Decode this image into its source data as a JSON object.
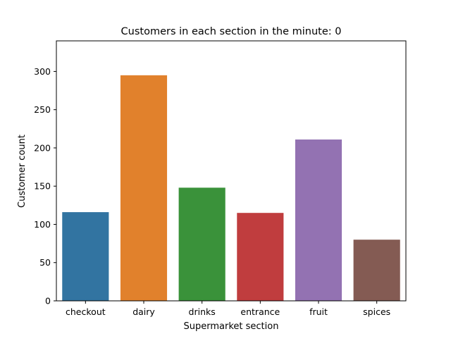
{
  "chart_data": {
    "type": "bar",
    "title": "Customers in each section in the minute: 0",
    "xlabel": "Supermarket section",
    "ylabel": "Customer count",
    "categories": [
      "checkout",
      "dairy",
      "drinks",
      "entrance",
      "fruit",
      "spices"
    ],
    "values": [
      116,
      295,
      148,
      115,
      211,
      80
    ],
    "colors": [
      "#3274a1",
      "#e1812c",
      "#3a923a",
      "#c03d3e",
      "#9372b2",
      "#845b53"
    ],
    "ylim": [
      0,
      340
    ],
    "yticks": [
      "0",
      "50",
      "100",
      "150",
      "200",
      "250",
      "300"
    ],
    "grid": false,
    "legend": "none"
  }
}
